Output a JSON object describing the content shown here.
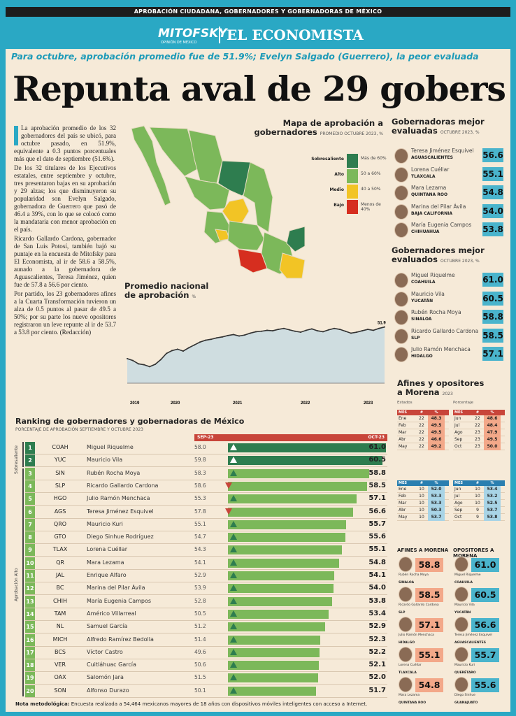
{
  "top_banner": "APROBACIÓN CIUDADANA, GOBERNADORES Y GOBERNADORAS DE MÉXICO",
  "brand": {
    "mitofsky": "MITOFSKY",
    "mitofsky_sub": "OPINIÓN DE MÉXICO",
    "economista": "EL ECONOMISTA"
  },
  "subhead": "Para octubre, aprobación promedio fue de 51.9%; Evelyn Salgado (Guerrero), la peor evaluada",
  "headline": "Repunta aval de 29 gobers",
  "body": [
    "La aprobación promedio de los 32 gobernadores del país se ubicó, para octubre pasado, en 51.9%, equivalente a 0.3 puntos porcentuales más que el dato de septiembre (51.6%).",
    "De los 32 titulares de los Ejecutivos estatales, entre septiembre y octubre, tres presentaron bajas en su aprobación y 29 alzas; los que disminuyeron su popularidad son Evelyn Salgado, gobernadora de Guerrero que pasó de 46.4 a 39%, con lo que se colocó como la mandataria con menor aprobación en el país.",
    "Ricardo Gallardo Cardona, gobernador de San Luis Potosí, también bajó su puntaje en la encuesta de Mitofsky para El Economista, al ir de 58.6 a 58.5%, aunado a la gobernadora de Aguascalientes, Teresa Jiménez, quien fue de 57.8 a 56.6 por ciento.",
    "Por partido, los 23 gobernadores afines a la Cuarta Transformación tuvieron un alza de 0.5 puntos al pasar de 49.5 a 50%; por su parte los nueve opositores registraron un leve repunte al ir de 53.7 a 53.8 por ciento. (Redacción)"
  ],
  "map": {
    "title_1": "Mapa de aprobación a",
    "title_2": "gobernadores",
    "subtitle": "PROMEDIO OCTUBRE 2023, %",
    "legend": [
      {
        "label": "Sobresaliente",
        "range": "Más de 60%",
        "color": "#2e7d4f"
      },
      {
        "label": "Alto",
        "range": "50 a 60%",
        "color": "#7cb85a"
      },
      {
        "label": "Medio",
        "range": "40 a 50%",
        "color": "#f2c425"
      },
      {
        "label": "Bajo",
        "range": "Menos de 40%",
        "color": "#d62e1f"
      }
    ]
  },
  "promedio": {
    "title_1": "Promedio nacional",
    "title_2": "de aprobación",
    "unit": "%"
  },
  "chart_data": {
    "type": "area",
    "title": "Promedio nacional de aprobación",
    "ylabel": "%",
    "x_ticks": [
      "2019",
      "2020",
      "2021",
      "2022",
      "2023"
    ],
    "values": [
      45.2,
      44.8,
      44.1,
      43.9,
      43.5,
      44.0,
      45.0,
      46.3,
      46.9,
      47.2,
      46.8,
      47.5,
      48.1,
      48.7,
      49.1,
      49.3,
      49.6,
      49.8,
      50.1,
      50.3,
      50.0,
      50.2,
      50.6,
      50.9,
      51.0,
      51.2,
      51.1,
      51.4,
      51.6,
      51.3,
      51.0,
      50.8,
      51.2,
      51.5,
      51.1,
      50.9,
      51.3,
      51.6,
      51.4,
      51.0,
      50.6,
      50.8,
      51.1,
      51.4,
      51.2,
      51.6,
      51.9
    ],
    "last_label": "51.9"
  },
  "mejor_evaluadas": {
    "title_1": "Gobernadoras mejor",
    "title_2": "evaluadas",
    "subtitle": "OCTUBRE 2023, %",
    "items": [
      {
        "name": "Teresa Jiménez Esquivel",
        "state": "AGUASCALIENTES",
        "value": "56.6"
      },
      {
        "name": "Lorena Cuéllar",
        "state": "TLAXCALA",
        "value": "55.1"
      },
      {
        "name": "Mara Lezama",
        "state": "QUINTANA ROO",
        "value": "54.8"
      },
      {
        "name": "Marina del Pilar Ávila",
        "state": "BAJA CALIFORNIA",
        "value": "54.0"
      },
      {
        "name": "María Eugenia Campos",
        "state": "CHIHUAHUA",
        "value": "53.8"
      }
    ]
  },
  "mejor_evaluados": {
    "title_1": "Gobernadores mejor",
    "title_2": "evaluados",
    "subtitle": "OCTUBRE 2023, %",
    "items": [
      {
        "name": "Miguel Riquelme",
        "state": "COAHUILA",
        "value": "61.0"
      },
      {
        "name": "Mauricio Vila",
        "state": "YUCATÁN",
        "value": "60.5"
      },
      {
        "name": "Rubén Rocha Moya",
        "state": "SINALOA",
        "value": "58.8"
      },
      {
        "name": "Ricardo Gallardo Cardona",
        "state": "SLP",
        "value": "58.5"
      },
      {
        "name": "Julio Ramón Menchaca",
        "state": "HIDALGO",
        "value": "57.1"
      }
    ]
  },
  "afines": {
    "title_1": "Afines y opositores",
    "title_2": "a Morena",
    "subtitle": "2023",
    "leg_estados": "Estados",
    "leg_pct": "Porcentaje",
    "head": [
      "MES",
      "#",
      "%"
    ],
    "t1": [
      [
        "Ene",
        "22",
        "48.3"
      ],
      [
        "Feb",
        "22",
        "49.5"
      ],
      [
        "Mar",
        "22",
        "49.5"
      ],
      [
        "Abr",
        "22",
        "46.6"
      ],
      [
        "May",
        "22",
        "49.2"
      ]
    ],
    "t2": [
      [
        "Jun",
        "22",
        "48.6"
      ],
      [
        "Jul",
        "22",
        "48.4"
      ],
      [
        "Ago",
        "23",
        "47.9"
      ],
      [
        "Sep",
        "23",
        "49.5"
      ],
      [
        "Oct",
        "23",
        "50.0"
      ]
    ],
    "t3": [
      [
        "Ene",
        "10",
        "52.0"
      ],
      [
        "Feb",
        "10",
        "53.3"
      ],
      [
        "Mar",
        "10",
        "53.3"
      ],
      [
        "Abr",
        "10",
        "50.3"
      ],
      [
        "May",
        "10",
        "53.7"
      ]
    ],
    "t4": [
      [
        "Jun",
        "10",
        "53.4"
      ],
      [
        "Jul",
        "10",
        "53.2"
      ],
      [
        "Ago",
        "10",
        "52.5"
      ],
      [
        "Sep",
        "9",
        "53.7"
      ],
      [
        "Oct",
        "9",
        "53.8"
      ]
    ]
  },
  "pairs": {
    "afines_head": "AFINES A MORENA",
    "opos_head": "OPOSITORES A MORENA",
    "afines": [
      {
        "name": "Rubén Rocha Moya",
        "state": "SINALOA",
        "value": "58.8"
      },
      {
        "name": "Ricardo Gallardo Cardona",
        "state": "SLP",
        "value": "58.5"
      },
      {
        "name": "Julio Ramón Menchaca",
        "state": "HIDALGO",
        "value": "57.1"
      },
      {
        "name": "Lorena Cuéllar",
        "state": "TLAXCALA",
        "value": "55.1"
      },
      {
        "name": "Mara Lezama",
        "state": "QUINTANA ROO",
        "value": "54.8"
      }
    ],
    "opos": [
      {
        "name": "Miguel Riquelme",
        "state": "COAHUILA",
        "value": "61.0"
      },
      {
        "name": "Mauricio Vila",
        "state": "YUCATÁN",
        "value": "60.5"
      },
      {
        "name": "Teresa Jiménez Esquivel",
        "state": "AGUASCALIENTES",
        "value": "56.6"
      },
      {
        "name": "Mauricio Kuri",
        "state": "QUERÉTARO",
        "value": "55.7"
      },
      {
        "name": "Diego Sinhue",
        "state": "GUANAJUATO",
        "value": "55.6"
      }
    ]
  },
  "ranking": {
    "title": "Ranking de gobernadores y gobernadoras de México",
    "subtitle": "PORCENTAJE DE APROBACIÓN SEPTIEMBRE Y OCTUBRE 2023",
    "sep_label": "SEP-23",
    "oct_label": "OCT-23",
    "lbl_sobre": "Sobresaliente",
    "lbl_alto": "Aprobación Alto",
    "rows": [
      {
        "n": "1",
        "st": "COAH",
        "name": "Miguel Riquelme",
        "sep": "58.0",
        "oct": "61.0",
        "dir": "up"
      },
      {
        "n": "2",
        "st": "YUC",
        "name": "Mauricio Vila",
        "sep": "59.8",
        "oct": "60.5",
        "dir": "up"
      },
      {
        "n": "3",
        "st": "SIN",
        "name": "Rubén Rocha Moya",
        "sep": "58.3",
        "oct": "58.8",
        "dir": "up"
      },
      {
        "n": "4",
        "st": "SLP",
        "name": "Ricardo Gallardo Cardona",
        "sep": "58.6",
        "oct": "58.5",
        "dir": "down"
      },
      {
        "n": "5",
        "st": "HGO",
        "name": "Julio Ramón Menchaca",
        "sep": "55.3",
        "oct": "57.1",
        "dir": "up"
      },
      {
        "n": "6",
        "st": "AGS",
        "name": "Teresa Jiménez Esquivel",
        "sep": "57.8",
        "oct": "56.6",
        "dir": "down"
      },
      {
        "n": "7",
        "st": "QRO",
        "name": "Mauricio Kuri",
        "sep": "55.1",
        "oct": "55.7",
        "dir": "up"
      },
      {
        "n": "8",
        "st": "GTO",
        "name": "Diego Sinhue Rodríguez",
        "sep": "54.7",
        "oct": "55.6",
        "dir": "up"
      },
      {
        "n": "9",
        "st": "TLAX",
        "name": "Lorena Cuéllar",
        "sep": "54.3",
        "oct": "55.1",
        "dir": "up"
      },
      {
        "n": "10",
        "st": "QR",
        "name": "Mara Lezama",
        "sep": "54.1",
        "oct": "54.8",
        "dir": "up"
      },
      {
        "n": "11",
        "st": "JAL",
        "name": "Enrique Alfaro",
        "sep": "52.9",
        "oct": "54.1",
        "dir": "up"
      },
      {
        "n": "12",
        "st": "BC",
        "name": "Marina del Pilar Ávila",
        "sep": "53.9",
        "oct": "54.0",
        "dir": "up"
      },
      {
        "n": "13",
        "st": "CHIH",
        "name": "María Eugenia Campos",
        "sep": "52.8",
        "oct": "53.8",
        "dir": "up"
      },
      {
        "n": "14",
        "st": "TAM",
        "name": "Américo Villarreal",
        "sep": "50.5",
        "oct": "53.4",
        "dir": "up"
      },
      {
        "n": "15",
        "st": "NL",
        "name": "Samuel García",
        "sep": "51.2",
        "oct": "52.9",
        "dir": "up"
      },
      {
        "n": "16",
        "st": "MICH",
        "name": "Alfredo Ramírez Bedolla",
        "sep": "51.4",
        "oct": "52.3",
        "dir": "up"
      },
      {
        "n": "17",
        "st": "BCS",
        "name": "Víctor Castro",
        "sep": "49.6",
        "oct": "52.2",
        "dir": "up"
      },
      {
        "n": "18",
        "st": "VER",
        "name": "Cuitláhuac García",
        "sep": "50.6",
        "oct": "52.1",
        "dir": "up"
      },
      {
        "n": "19",
        "st": "OAX",
        "name": "Salomón Jara",
        "sep": "51.5",
        "oct": "52.0",
        "dir": "up"
      },
      {
        "n": "20",
        "st": "SON",
        "name": "Alfonso Durazo",
        "sep": "50.1",
        "oct": "51.7",
        "dir": "up"
      }
    ]
  },
  "nota_label": "Nota metodológica:",
  "nota": "Encuesta realizada a 54,464 mexicanos mayores de 18 años con dispositivos móviles inteligentes con acceso a Internet."
}
